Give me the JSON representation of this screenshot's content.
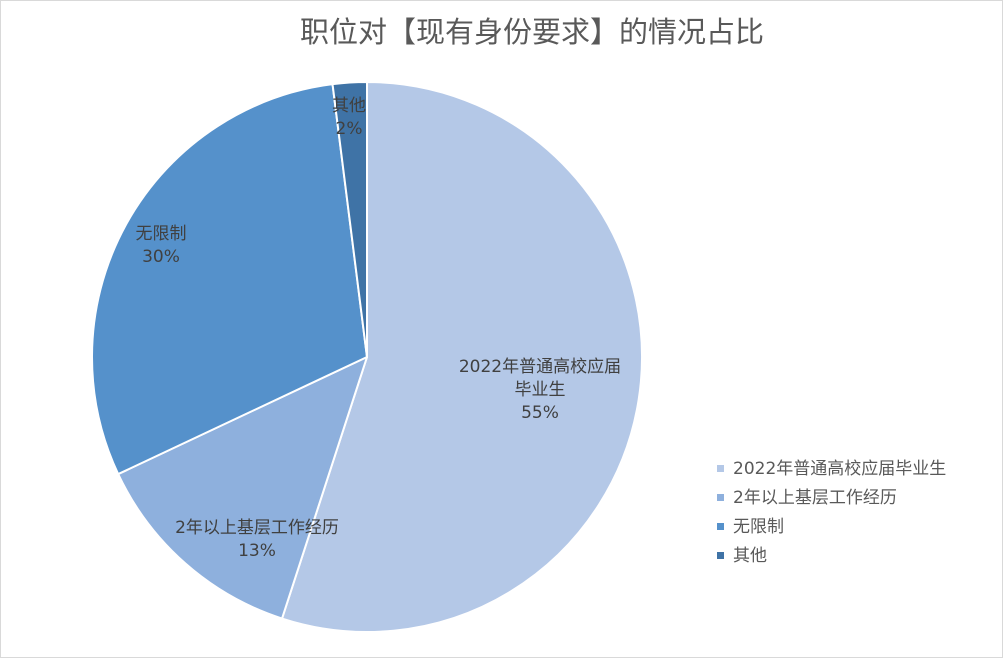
{
  "chart_data": {
    "type": "pie",
    "title": "职位对【现有身份要求】的情况占比",
    "categories": [
      "2022年普通高校应届毕业生",
      "2年以上基层工作经历",
      "无限制",
      "其他"
    ],
    "values": [
      55,
      13,
      30,
      2
    ],
    "data_labels": [
      "55%",
      "13%",
      "30%",
      "2%"
    ],
    "colors": [
      "#B4C8E7",
      "#8EB0DD",
      "#5591CB",
      "#3F73A6"
    ],
    "legend_position": "right"
  }
}
